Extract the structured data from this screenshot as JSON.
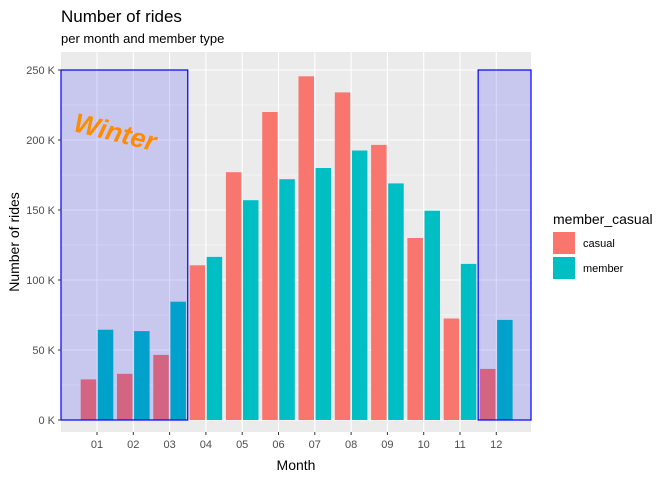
{
  "chart_data": {
    "type": "bar",
    "title": "Number of rides",
    "subtitle": "per month and member type",
    "xlabel": "Month",
    "ylabel": "Number of rides",
    "categories": [
      "01",
      "02",
      "03",
      "04",
      "05",
      "06",
      "07",
      "08",
      "09",
      "10",
      "11",
      "12"
    ],
    "series": [
      {
        "name": "casual",
        "values": [
          29000,
          33000,
          46500,
          110500,
          177000,
          220000,
          245500,
          234000,
          196500,
          130000,
          72500,
          36500
        ]
      },
      {
        "name": "member",
        "values": [
          64500,
          63500,
          84500,
          116500,
          157000,
          172000,
          180000,
          192500,
          169000,
          149500,
          111500,
          71500
        ]
      }
    ],
    "ylim": [
      0,
      250000
    ],
    "yticks": [
      0,
      50000,
      100000,
      150000,
      200000,
      250000
    ],
    "ytick_labels": [
      "0 K",
      "50 K",
      "100 K",
      "150 K",
      "200 K",
      "250 K"
    ],
    "grid": true,
    "legend": {
      "title": "member_casual",
      "position": "right"
    },
    "annotations": [
      {
        "text": "Winter",
        "color": "#ff8c00"
      }
    ],
    "highlights": [
      {
        "x_from": "01",
        "x_to": "03",
        "y_to": 250000,
        "fill": "#0000ff",
        "stroke": "#0000ff"
      },
      {
        "x_from": "12",
        "x_to": "12",
        "y_to": 250000,
        "fill": "#0000ff",
        "stroke": "#0000ff"
      }
    ]
  },
  "colors": {
    "casual": "#f8766d",
    "member": "#00bfc4",
    "panel": "#ebebeb",
    "grid": "#ffffff",
    "highlight": "#0000ff",
    "annotation": "#ff8c00"
  }
}
